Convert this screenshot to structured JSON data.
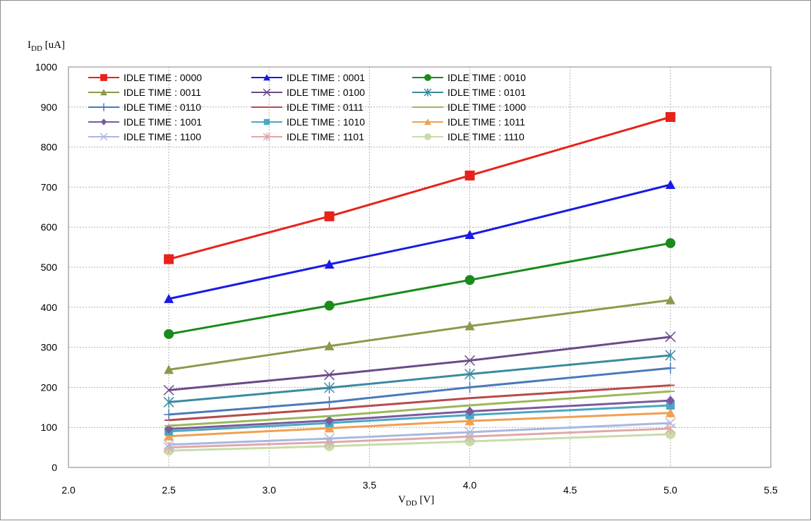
{
  "chart_data": {
    "type": "line",
    "ylabel_main": "I",
    "ylabel_sub": "DD",
    "ylabel_unit": " [uA]",
    "xlabel_main": "V",
    "xlabel_sub": "DD",
    "xlabel_unit": " [V]",
    "xlim": [
      2.0,
      5.5
    ],
    "ylim": [
      0,
      1000
    ],
    "xticks": [
      "2.0",
      "2.5",
      "3.0",
      "3.5",
      "4.0",
      "4.5",
      "5.0",
      "5.5"
    ],
    "yticks": [
      "0",
      "100",
      "200",
      "300",
      "400",
      "500",
      "600",
      "700",
      "800",
      "900",
      "1000"
    ],
    "grid": true,
    "legend_position": "top-left",
    "x": [
      2.5,
      3.3,
      4.0,
      5.0
    ],
    "series": [
      {
        "name": "IDLE TIME : 0000",
        "color": "#e8221b",
        "marker": "square-large",
        "values": [
          520,
          627,
          729,
          875
        ]
      },
      {
        "name": "IDLE TIME : 0001",
        "color": "#1a1ae6",
        "marker": "triangle",
        "values": [
          421,
          507,
          581,
          706
        ]
      },
      {
        "name": "IDLE TIME : 0010",
        "color": "#1a8a1a",
        "marker": "circle",
        "values": [
          333,
          404,
          468,
          560
        ]
      },
      {
        "name": "IDLE TIME : 0011",
        "color": "#8a9a4a",
        "marker": "triangle",
        "values": [
          244,
          303,
          353,
          418
        ]
      },
      {
        "name": "IDLE TIME : 0100",
        "color": "#6a4a8a",
        "marker": "x",
        "values": [
          193,
          231,
          267,
          326
        ]
      },
      {
        "name": "IDLE TIME : 0101",
        "color": "#3a8aa0",
        "marker": "asterisk",
        "values": [
          163,
          199,
          233,
          280
        ]
      },
      {
        "name": "IDLE TIME : 0110",
        "color": "#4a7ab8",
        "marker": "plus",
        "values": [
          132,
          163,
          200,
          248
        ]
      },
      {
        "name": "IDLE TIME : 0111",
        "color": "#b84a4a",
        "marker": "dash",
        "values": [
          118,
          146,
          173,
          205
        ]
      },
      {
        "name": "IDLE TIME : 1000",
        "color": "#9ab85a",
        "marker": "dash",
        "values": [
          104,
          128,
          155,
          190
        ]
      },
      {
        "name": "IDLE TIME : 1001",
        "color": "#7a5aa0",
        "marker": "diamond",
        "values": [
          96,
          117,
          140,
          167
        ]
      },
      {
        "name": "IDLE TIME : 1010",
        "color": "#4aa8c0",
        "marker": "square",
        "values": [
          90,
          111,
          131,
          155
        ]
      },
      {
        "name": "IDLE TIME : 1011",
        "color": "#f0a050",
        "marker": "triangle",
        "values": [
          78,
          98,
          116,
          136
        ]
      },
      {
        "name": "IDLE TIME : 1100",
        "color": "#a8b8e0",
        "marker": "x",
        "values": [
          57,
          72,
          88,
          111
        ]
      },
      {
        "name": "IDLE TIME : 1101",
        "color": "#e0a8a8",
        "marker": "asterisk",
        "values": [
          50,
          63,
          77,
          97
        ]
      },
      {
        "name": "IDLE TIME : 1110",
        "color": "#c8dca8",
        "marker": "circle",
        "values": [
          42,
          53,
          65,
          83
        ]
      }
    ]
  }
}
